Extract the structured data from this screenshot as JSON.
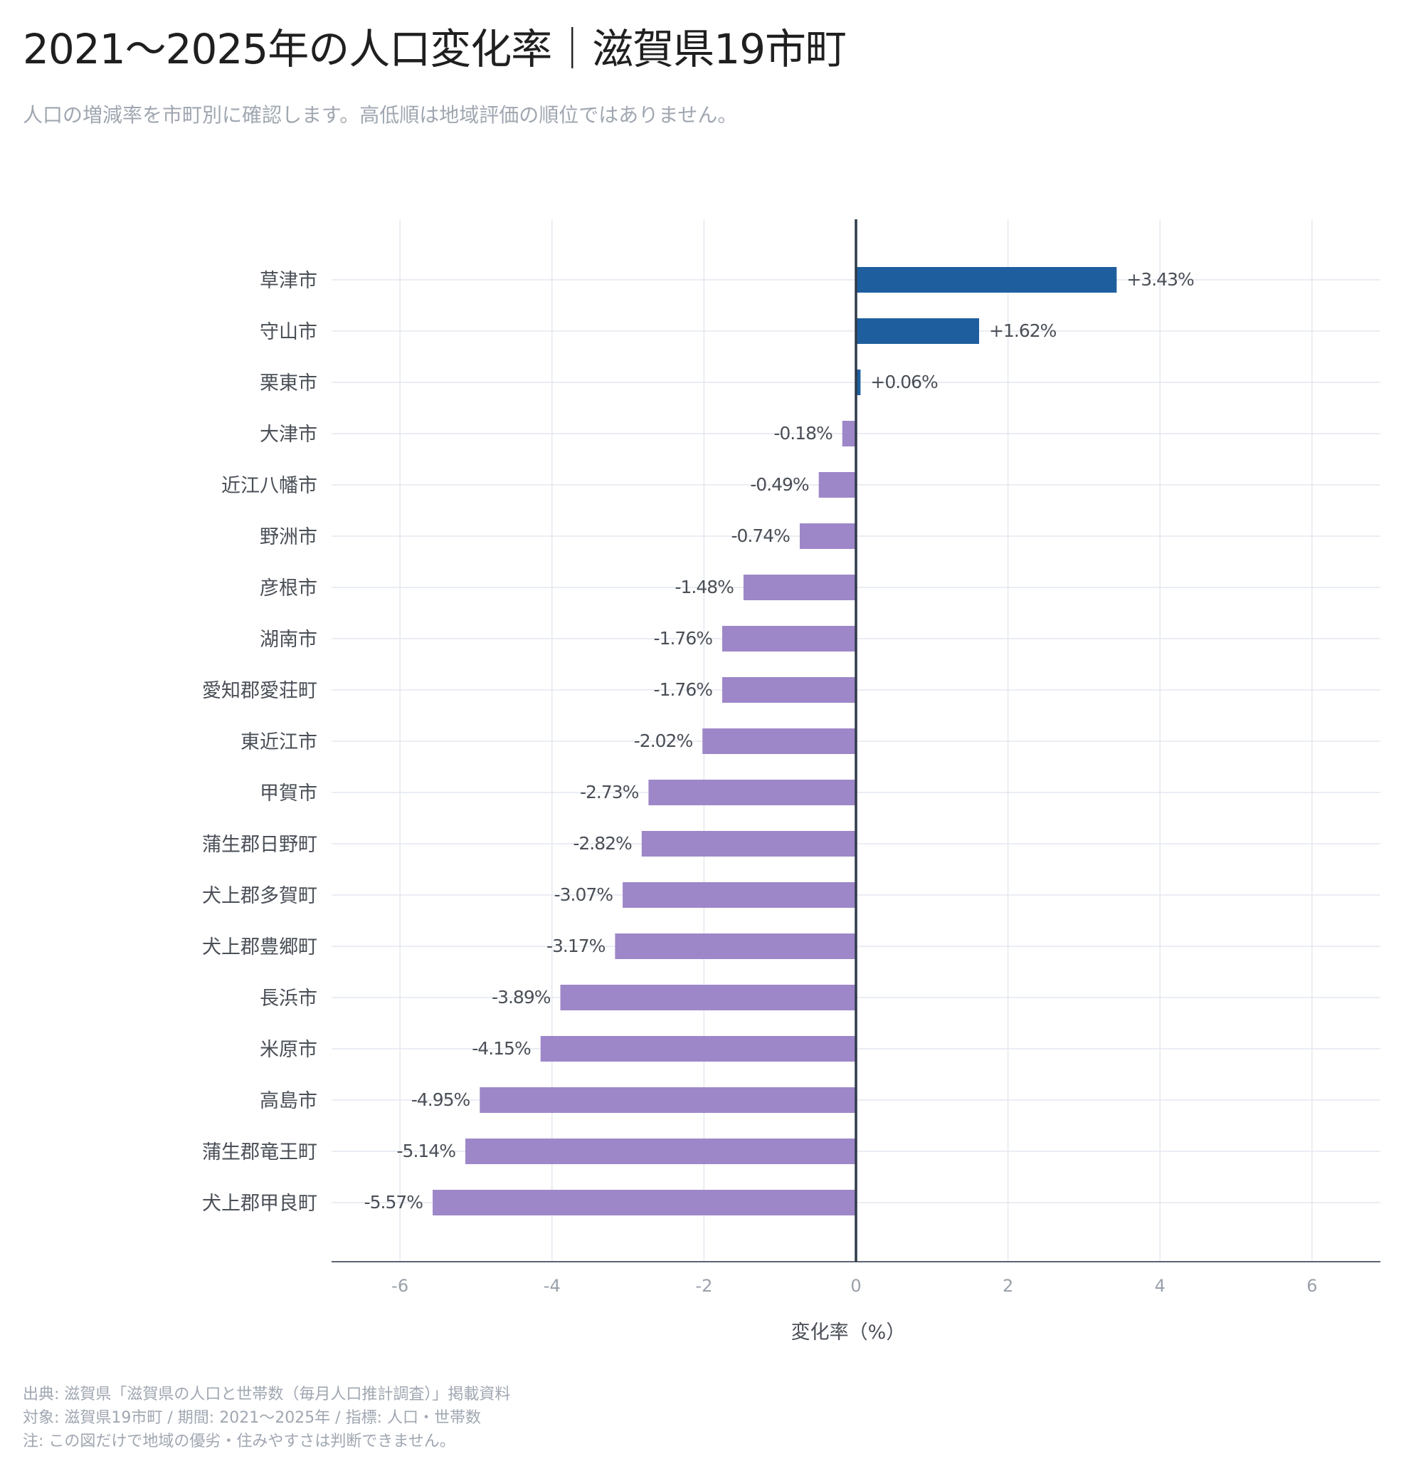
{
  "title": "2021〜2025年の人口変化率｜滋賀県19市町",
  "subtitle": "人口の増減率を市町別に確認します。高低順は地域評価の順位ではありません。",
  "footer": {
    "source": "出典: 滋賀県「滋賀県の人口と世帯数（毎月人口推計調査）」掲載資料",
    "scope": "対象: 滋賀県19市町 / 期間: 2021〜2025年 / 指標: 人口・世帯数",
    "note": "注: この図だけで地域の優劣・住みやすさは判断できません。"
  },
  "colors": {
    "positive": "#1f5e9e",
    "negative": "#9d87c8",
    "zero_line": "#2f3a4a",
    "grid": "#e3e7ef",
    "axis": "#5b6470"
  },
  "chart_data": {
    "type": "bar",
    "orientation": "horizontal",
    "categories": [
      "草津市",
      "守山市",
      "栗東市",
      "大津市",
      "近江八幡市",
      "野洲市",
      "彦根市",
      "湖南市",
      "愛知郡愛荘町",
      "東近江市",
      "甲賀市",
      "蒲生郡日野町",
      "犬上郡多賀町",
      "犬上郡豊郷町",
      "長浜市",
      "米原市",
      "高島市",
      "蒲生郡竜王町",
      "犬上郡甲良町"
    ],
    "values": [
      3.43,
      1.62,
      0.06,
      -0.18,
      -0.49,
      -0.74,
      -1.48,
      -1.76,
      -1.76,
      -2.02,
      -2.73,
      -2.82,
      -3.07,
      -3.17,
      -3.89,
      -4.15,
      -4.95,
      -5.14,
      -5.57
    ],
    "value_labels": [
      "+3.43%",
      "+1.62%",
      "+0.06%",
      "-0.18%",
      "-0.49%",
      "-0.74%",
      "-1.48%",
      "-1.76%",
      "-1.76%",
      "-2.02%",
      "-2.73%",
      "-2.82%",
      "-3.07%",
      "-3.17%",
      "-3.89%",
      "-4.15%",
      "-4.95%",
      "-5.14%",
      "-5.57%"
    ],
    "x_ticks": [
      -6,
      -4,
      -2,
      0,
      2,
      4,
      6
    ],
    "xlim": [
      -6.9,
      6.9
    ],
    "xlabel": "変化率（%）",
    "ylabel": "",
    "grid": true,
    "legend": "none"
  }
}
